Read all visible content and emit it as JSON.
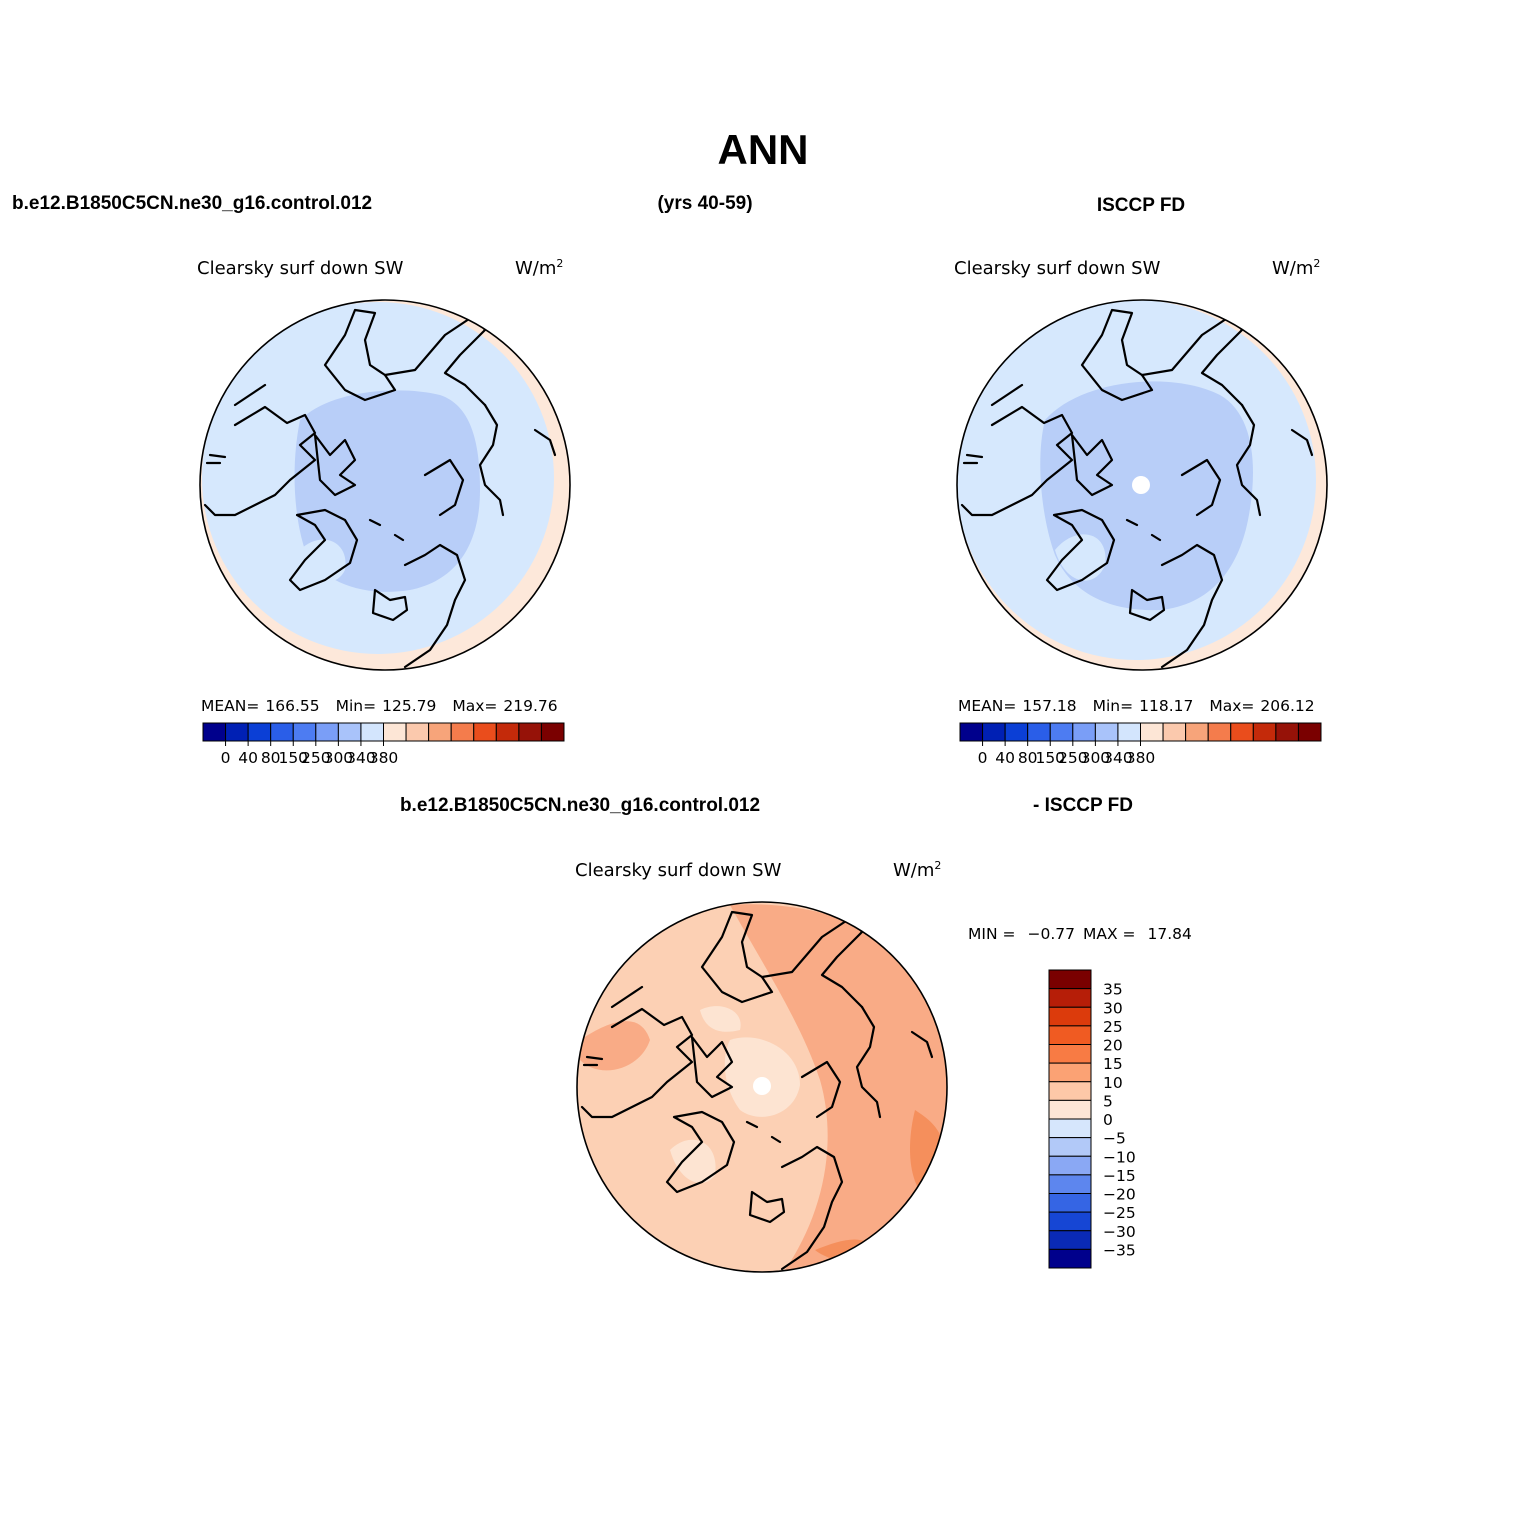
{
  "title": "ANN",
  "header": {
    "model_case": "b.e12.B1850C5CN.ne30_g16.control.012",
    "years": "(yrs 40-59)",
    "obs_case": "ISCCP FD",
    "diff_model": "b.e12.B1850C5CN.ne30_g16.control.012",
    "diff_obs": "- ISCCP FD"
  },
  "panels": [
    {
      "variable": "Clearsky surf down SW",
      "units": "W/m",
      "units_exp": "2",
      "stats": {
        "mean_label": "MEAN=",
        "mean": "166.55",
        "min_label": "Min=",
        "min": "125.79",
        "max_label": "Max=",
        "max": "219.76"
      }
    },
    {
      "variable": "Clearsky surf down SW",
      "units": "W/m",
      "units_exp": "2",
      "stats": {
        "mean_label": "MEAN=",
        "mean": "157.18",
        "min_label": "Min=",
        "min": "118.17",
        "max_label": "Max=",
        "max": "206.12"
      }
    },
    {
      "variable": "Clearsky surf down SW",
      "units": "W/m",
      "units_exp": "2",
      "stats": {
        "min_label": "MIN =",
        "min": "−0.77",
        "max_label": "MAX =",
        "max": "17.84"
      }
    }
  ],
  "colorbar_abs": {
    "colors": [
      "#00008c",
      "#0020b4",
      "#0b3fd6",
      "#2a5ee8",
      "#4d7cf2",
      "#7a9ef7",
      "#a9c3fa",
      "#d3e5fd",
      "#fde6d6",
      "#fbc9ad",
      "#f7a47a",
      "#f47c4c",
      "#ea4d1c",
      "#c42a0a",
      "#961208",
      "#7a0000"
    ],
    "tick_labels": [
      "0",
      "40",
      "80",
      "150",
      "250",
      "300",
      "340",
      "380"
    ]
  },
  "colorbar_diff": {
    "colors": [
      "#7a0000",
      "#b61e08",
      "#dc3b0c",
      "#f05b22",
      "#f87b44",
      "#fba274",
      "#fdc8a8",
      "#fee6d6",
      "#d6e6fc",
      "#b2c9f8",
      "#8aa8f4",
      "#5d86ee",
      "#3565e4",
      "#1646d4",
      "#0a2ab6",
      "#00008c"
    ],
    "tick_labels": [
      "35",
      "30",
      "25",
      "20",
      "15",
      "10",
      "5",
      "0",
      "−5",
      "−10",
      "−15",
      "−20",
      "−25",
      "−30",
      "−35"
    ]
  },
  "map_colors": {
    "ocean_low": "#d6e8fd",
    "pole_low": "#b8cef8",
    "edge_high": "#fde8da",
    "diff_base": "#fcd0b4",
    "diff_high": "#f9ab86",
    "diff_higher": "#f58f5c",
    "diff_low": "#fde4d2",
    "missing": "#ffffff"
  }
}
